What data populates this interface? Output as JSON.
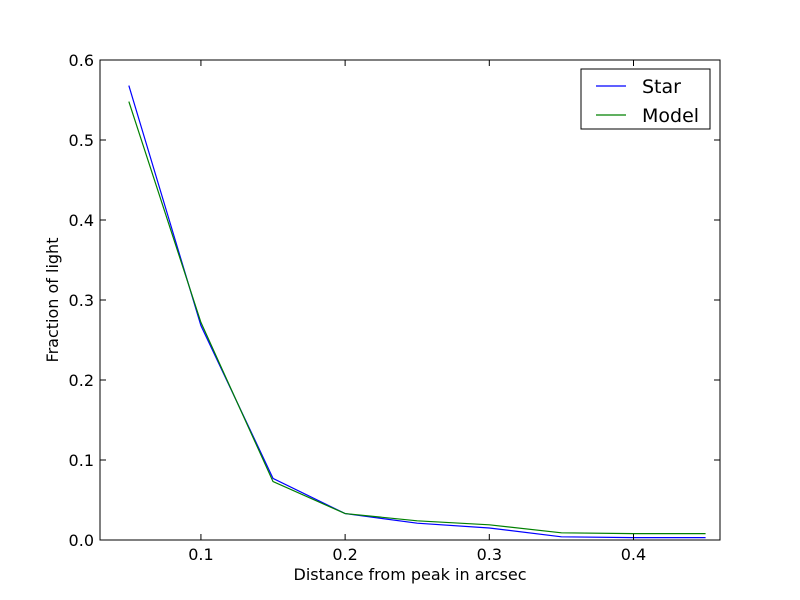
{
  "chart_data": {
    "type": "line",
    "title": "",
    "xlabel": "Distance from peak in arcsec",
    "ylabel": "Fraction of light",
    "xlim": [
      0.03,
      0.46
    ],
    "ylim": [
      0.0,
      0.6
    ],
    "xticks": [
      0.1,
      0.2,
      0.3,
      0.4
    ],
    "xtick_labels": [
      "0.1",
      "0.2",
      "0.3",
      "0.4"
    ],
    "yticks": [
      0.0,
      0.1,
      0.2,
      0.3,
      0.4,
      0.5,
      0.6
    ],
    "ytick_labels": [
      "0.0",
      "0.1",
      "0.2",
      "0.3",
      "0.4",
      "0.5",
      "0.6"
    ],
    "grid": false,
    "legend_position": "top-right",
    "x": [
      0.05,
      0.1,
      0.15,
      0.2,
      0.25,
      0.3,
      0.35,
      0.4,
      0.45
    ],
    "series": [
      {
        "name": "Star",
        "color": "#0000ff",
        "values": [
          0.568,
          0.268,
          0.077,
          0.033,
          0.021,
          0.015,
          0.004,
          0.003,
          0.003
        ]
      },
      {
        "name": "Model",
        "color": "#008000",
        "values": [
          0.548,
          0.272,
          0.073,
          0.033,
          0.024,
          0.019,
          0.009,
          0.008,
          0.008
        ]
      }
    ]
  }
}
